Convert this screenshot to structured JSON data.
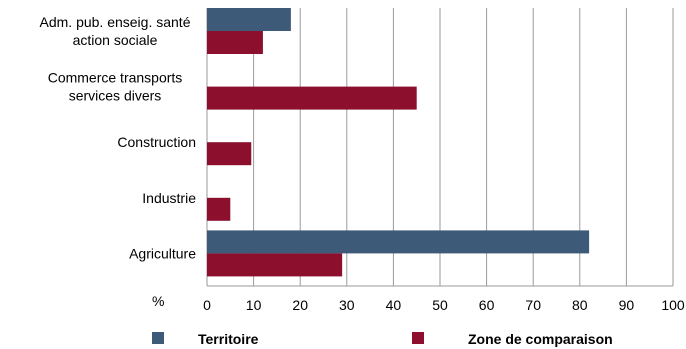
{
  "chart_data": {
    "type": "bar",
    "orientation": "horizontal",
    "categories": [
      [
        "Adm. pub. enseig. santé",
        "action sociale"
      ],
      [
        "Commerce transports",
        "services divers"
      ],
      [
        "Construction"
      ],
      [
        "Industrie"
      ],
      [
        "Agriculture"
      ]
    ],
    "series": [
      {
        "name": "Territoire",
        "color": "#3d5a78",
        "values": [
          18,
          0,
          0,
          0,
          82
        ]
      },
      {
        "name": "Zone de comparaison",
        "color": "#8c0f2e",
        "values": [
          12,
          45,
          9.5,
          5,
          29
        ]
      }
    ],
    "xlim": [
      0,
      100
    ],
    "xticks": [
      0,
      10,
      20,
      30,
      40,
      50,
      60,
      70,
      80,
      90,
      100
    ],
    "xunit": "%",
    "grid": "vertical",
    "legend": "bottom"
  }
}
